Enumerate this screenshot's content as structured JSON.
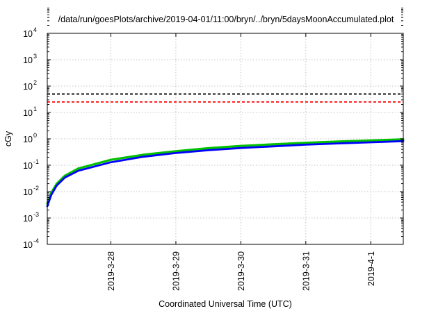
{
  "chart_data": {
    "type": "line",
    "title": "/data/run/goesPlots/archive/2019-04-01/11:00/bryn/../bryn/5daysMoonAccumulated.plot",
    "xlabel": "Coordinated Universal Time (UTC)",
    "ylabel": "cGy",
    "yscale": "log",
    "ylim": [
      0.0001,
      10000
    ],
    "xlim": [
      "2019-03-27 00:30",
      "2019-04-01 12:00"
    ],
    "x_ticks": [
      "2019-3-28",
      "2019-3-29",
      "2019-3-30",
      "2019-3-31",
      "2019-4-1"
    ],
    "y_ticks": [
      {
        "base": "10",
        "exp": "-4"
      },
      {
        "base": "10",
        "exp": "-3"
      },
      {
        "base": "10",
        "exp": "-2"
      },
      {
        "base": "10",
        "exp": "-1"
      },
      {
        "base": "10",
        "exp": "0"
      },
      {
        "base": "10",
        "exp": "1"
      },
      {
        "base": "10",
        "exp": "2"
      },
      {
        "base": "10",
        "exp": "3"
      },
      {
        "base": "10",
        "exp": "4"
      }
    ],
    "grid": true,
    "reference_lines": [
      {
        "y": 50,
        "color": "#000000",
        "style": "dashed"
      },
      {
        "y": 25,
        "color": "#ff0000",
        "style": "dashed"
      }
    ],
    "series": [
      {
        "color": "#00c000",
        "x": [
          "2019-03-27 00:30",
          "2019-03-27 02:00",
          "2019-03-27 04:00",
          "2019-03-27 07:00",
          "2019-03-27 12:00",
          "2019-03-28 00:00",
          "2019-03-28 12:00",
          "2019-03-29 00:00",
          "2019-03-29 12:00",
          "2019-03-30 00:00",
          "2019-03-30 12:00",
          "2019-03-31 00:00",
          "2019-03-31 12:00",
          "2019-04-01 00:00",
          "2019-04-01 12:00"
        ],
        "y": [
          0.0035,
          0.009,
          0.02,
          0.04,
          0.075,
          0.16,
          0.25,
          0.34,
          0.44,
          0.54,
          0.62,
          0.71,
          0.79,
          0.87,
          0.96
        ]
      },
      {
        "color": "#0000ff",
        "x": [
          "2019-03-27 00:30",
          "2019-03-27 02:00",
          "2019-03-27 04:00",
          "2019-03-27 07:00",
          "2019-03-27 12:00",
          "2019-03-28 00:00",
          "2019-03-28 12:00",
          "2019-03-29 00:00",
          "2019-03-29 12:00",
          "2019-03-30 00:00",
          "2019-03-30 12:00",
          "2019-03-31 00:00",
          "2019-03-31 12:00",
          "2019-04-01 00:00",
          "2019-04-01 12:00"
        ],
        "y": [
          0.0028,
          0.0075,
          0.017,
          0.034,
          0.062,
          0.13,
          0.21,
          0.29,
          0.37,
          0.45,
          0.52,
          0.6,
          0.67,
          0.74,
          0.82
        ]
      }
    ]
  }
}
